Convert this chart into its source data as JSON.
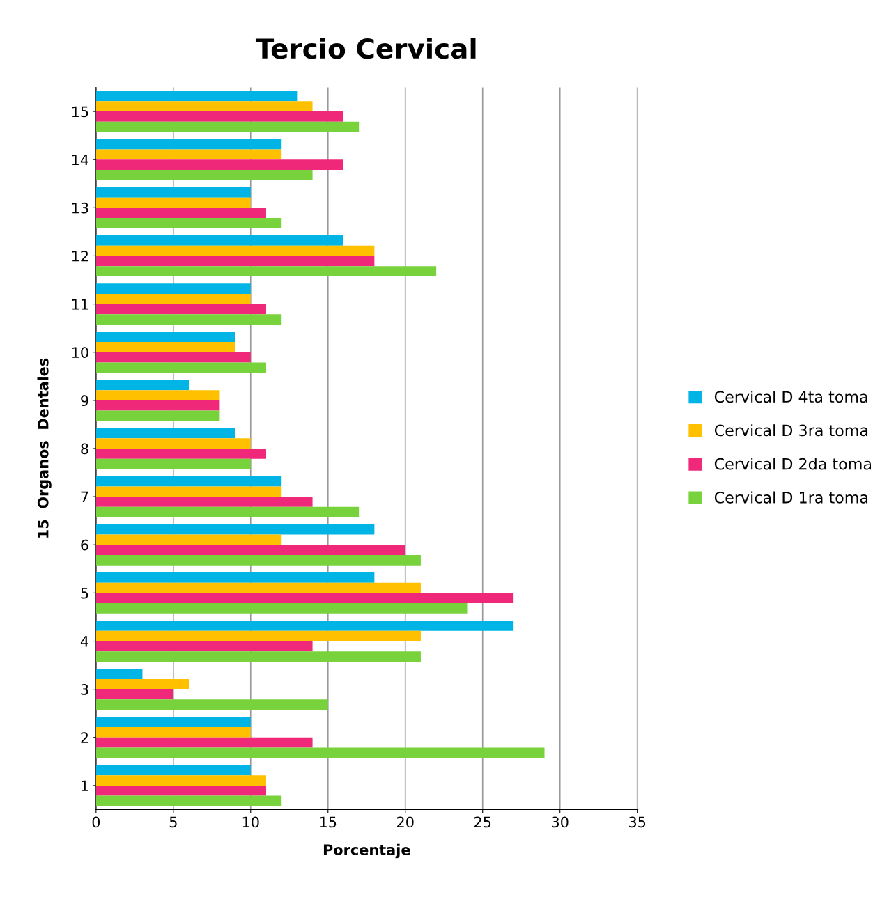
{
  "chart_data": {
    "type": "bar",
    "orientation": "horizontal",
    "title": "Tercio Cervical",
    "xlabel": "Porcentaje",
    "ylabel": "15  Organos  Dentales",
    "categories": [
      "15",
      "14",
      "13",
      "12",
      "11",
      "10",
      "9",
      "8",
      "7",
      "6",
      "5",
      "4",
      "3",
      "2",
      "1"
    ],
    "series": [
      {
        "name": "Cervical D 4ta toma",
        "color": "#00b4e6",
        "values": [
          13,
          12,
          10,
          16,
          10,
          9,
          6,
          9,
          12,
          18,
          18,
          27,
          3,
          10,
          10
        ]
      },
      {
        "name": "Cervical D 3ra toma",
        "color": "#ffc000",
        "values": [
          14,
          12,
          10,
          18,
          10,
          9,
          8,
          10,
          12,
          12,
          21,
          21,
          6,
          10,
          11
        ]
      },
      {
        "name": "Cervical D 2da toma",
        "color": "#f0287a",
        "values": [
          16,
          16,
          11,
          18,
          11,
          10,
          8,
          11,
          14,
          20,
          27,
          14,
          5,
          14,
          11
        ]
      },
      {
        "name": "Cervical D 1ra toma",
        "color": "#78d23c",
        "values": [
          17,
          14,
          12,
          22,
          12,
          11,
          8,
          10,
          17,
          21,
          24,
          21,
          15,
          29,
          12
        ]
      }
    ],
    "xlim": [
      0,
      35
    ],
    "xticks": [
      0,
      5,
      10,
      15,
      20,
      25,
      30,
      35
    ],
    "grid": "x",
    "legend": "right"
  }
}
